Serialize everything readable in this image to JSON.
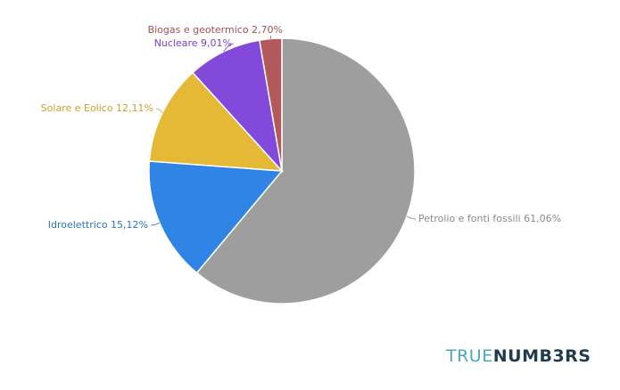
{
  "chart_data": {
    "type": "pie",
    "title": "",
    "unit": "%",
    "slices": [
      {
        "label": "Petrolio e fonti fossili 61,06%",
        "value": 61.06,
        "color": "#9e9e9e",
        "label_color": "#8a8a8a"
      },
      {
        "label": "Idroelettrico 15,12%",
        "value": 15.12,
        "color": "#2f84e6",
        "label_color": "#2f74c9"
      },
      {
        "label": "Solare e Eolico 12,11%",
        "value": 12.11,
        "color": "#e3b935",
        "label_color": "#c9a227"
      },
      {
        "label": "Nucleare 9,01%",
        "value": 9.01,
        "color": "#8349da",
        "label_color": "#7a3fd0"
      },
      {
        "label": "Biogas e geotermico 2,70%",
        "value": 2.7,
        "color": "#b3595c",
        "label_color": "#a64f52"
      }
    ]
  },
  "brand": {
    "part1": "TRUE",
    "part2": "NUMB3RS",
    "color1": "#4aa7c4",
    "color2": "#1f3b4d"
  }
}
